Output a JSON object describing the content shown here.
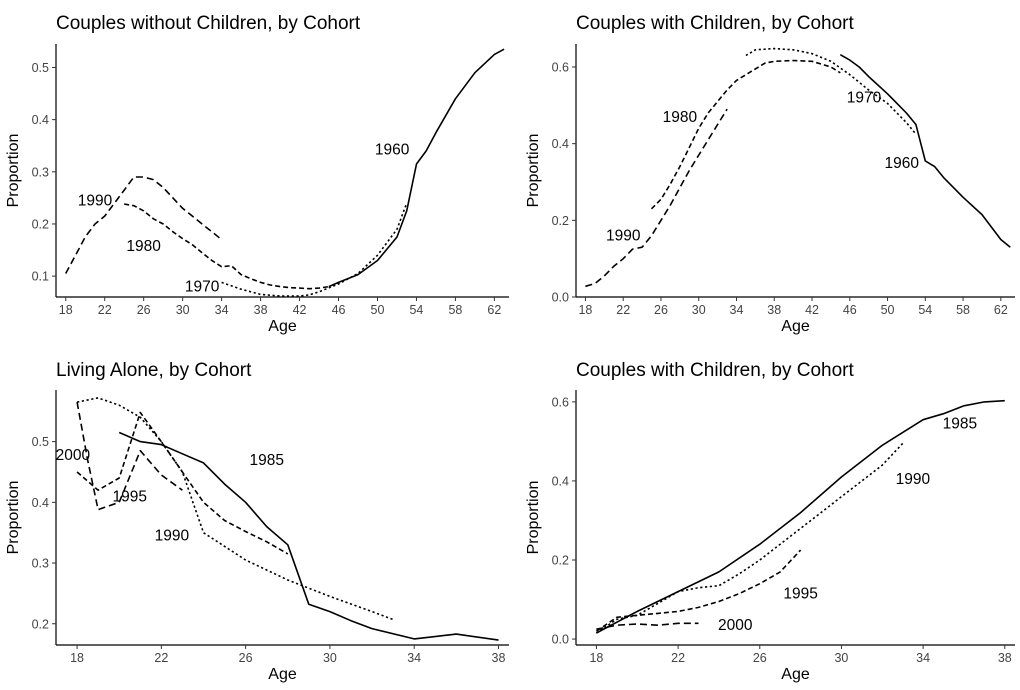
{
  "chart_data": [
    {
      "type": "line",
      "title": "Couples without Children, by Cohort",
      "xlabel": "Age",
      "ylabel": "Proportion",
      "xlim": [
        17,
        63.5
      ],
      "ylim": [
        0.06,
        0.545
      ],
      "xticks": [
        18,
        22,
        26,
        30,
        34,
        38,
        42,
        46,
        50,
        54,
        58,
        62
      ],
      "yticks": [
        0.1,
        0.2,
        0.3,
        0.4,
        0.5
      ],
      "series": [
        {
          "name": "1990",
          "style": "longdash",
          "label_at": [
            21,
            0.245
          ],
          "points": [
            [
              18,
              0.105
            ],
            [
              19,
              0.14
            ],
            [
              20,
              0.175
            ],
            [
              21,
              0.2
            ],
            [
              22,
              0.215
            ],
            [
              23,
              0.24
            ],
            [
              24,
              0.265
            ],
            [
              25,
              0.29
            ],
            [
              26,
              0.29
            ],
            [
              27,
              0.285
            ],
            [
              28,
              0.27
            ],
            [
              29,
              0.25
            ],
            [
              30,
              0.23
            ],
            [
              31,
              0.215
            ],
            [
              32,
              0.2
            ],
            [
              33,
              0.185
            ],
            [
              34,
              0.17
            ]
          ]
        },
        {
          "name": "1980",
          "style": "shortdash",
          "label_at": [
            26,
            0.158
          ],
          "points": [
            [
              24,
              0.238
            ],
            [
              25,
              0.235
            ],
            [
              26,
              0.225
            ],
            [
              27,
              0.21
            ],
            [
              28,
              0.2
            ],
            [
              29,
              0.185
            ],
            [
              30,
              0.172
            ],
            [
              31,
              0.16
            ],
            [
              32,
              0.145
            ],
            [
              33,
              0.13
            ],
            [
              34,
              0.118
            ],
            [
              35,
              0.12
            ],
            [
              36,
              0.103
            ],
            [
              37,
              0.095
            ],
            [
              38,
              0.088
            ],
            [
              39,
              0.083
            ],
            [
              40,
              0.08
            ],
            [
              41,
              0.078
            ],
            [
              42,
              0.077
            ],
            [
              43,
              0.076
            ],
            [
              44,
              0.077
            ],
            [
              45,
              0.08
            ]
          ]
        },
        {
          "name": "1970",
          "style": "dotted",
          "label_at": [
            32,
            0.08
          ],
          "points": [
            [
              34,
              0.088
            ],
            [
              36,
              0.075
            ],
            [
              38,
              0.065
            ],
            [
              40,
              0.062
            ],
            [
              42,
              0.062
            ],
            [
              43,
              0.064
            ],
            [
              44,
              0.07
            ],
            [
              46,
              0.085
            ],
            [
              48,
              0.105
            ],
            [
              50,
              0.14
            ],
            [
              52,
              0.19
            ],
            [
              53,
              0.24
            ]
          ]
        },
        {
          "name": "1960",
          "style": "solid",
          "label_at": [
            51.5,
            0.343
          ],
          "points": [
            [
              45,
              0.08
            ],
            [
              46,
              0.088
            ],
            [
              48,
              0.103
            ],
            [
              50,
              0.13
            ],
            [
              52,
              0.175
            ],
            [
              53,
              0.225
            ],
            [
              54,
              0.315
            ],
            [
              55,
              0.34
            ],
            [
              56,
              0.375
            ],
            [
              58,
              0.44
            ],
            [
              60,
              0.49
            ],
            [
              62,
              0.525
            ],
            [
              63,
              0.535
            ]
          ]
        }
      ]
    },
    {
      "type": "line",
      "title": "Couples with Children, by Cohort",
      "xlabel": "Age",
      "ylabel": "Proportion",
      "xlim": [
        17,
        63.5
      ],
      "ylim": [
        0,
        0.66
      ],
      "xticks": [
        18,
        22,
        26,
        30,
        34,
        38,
        42,
        46,
        50,
        54,
        58,
        62
      ],
      "yticks": [
        0.0,
        0.2,
        0.4,
        0.6
      ],
      "series": [
        {
          "name": "1990",
          "style": "longdash",
          "label_at": [
            22,
            0.16
          ],
          "points": [
            [
              18,
              0.028
            ],
            [
              19,
              0.035
            ],
            [
              20,
              0.055
            ],
            [
              21,
              0.08
            ],
            [
              22,
              0.1
            ],
            [
              23,
              0.125
            ],
            [
              24,
              0.13
            ],
            [
              25,
              0.16
            ],
            [
              26,
              0.2
            ],
            [
              27,
              0.24
            ],
            [
              28,
              0.285
            ],
            [
              29,
              0.33
            ],
            [
              30,
              0.37
            ],
            [
              31,
              0.41
            ],
            [
              32,
              0.45
            ],
            [
              33,
              0.49
            ]
          ]
        },
        {
          "name": "1980",
          "style": "shortdash",
          "label_at": [
            28,
            0.47
          ],
          "points": [
            [
              25,
              0.23
            ],
            [
              26,
              0.255
            ],
            [
              27,
              0.295
            ],
            [
              28,
              0.34
            ],
            [
              29,
              0.39
            ],
            [
              30,
              0.44
            ],
            [
              31,
              0.48
            ],
            [
              32,
              0.51
            ],
            [
              33,
              0.54
            ],
            [
              34,
              0.565
            ],
            [
              35,
              0.58
            ],
            [
              36,
              0.595
            ],
            [
              37,
              0.61
            ],
            [
              38,
              0.615
            ],
            [
              40,
              0.617
            ],
            [
              42,
              0.615
            ],
            [
              44,
              0.6
            ],
            [
              45,
              0.585
            ]
          ]
        },
        {
          "name": "1970",
          "style": "dotted",
          "label_at": [
            47.5,
            0.52
          ],
          "points": [
            [
              35,
              0.63
            ],
            [
              36,
              0.645
            ],
            [
              38,
              0.648
            ],
            [
              40,
              0.645
            ],
            [
              42,
              0.635
            ],
            [
              44,
              0.615
            ],
            [
              46,
              0.58
            ],
            [
              48,
              0.54
            ],
            [
              50,
              0.505
            ],
            [
              52,
              0.455
            ],
            [
              53,
              0.425
            ]
          ]
        },
        {
          "name": "1960",
          "style": "solid",
          "label_at": [
            51.5,
            0.35
          ],
          "points": [
            [
              45,
              0.632
            ],
            [
              46,
              0.618
            ],
            [
              47,
              0.6
            ],
            [
              48,
              0.575
            ],
            [
              50,
              0.53
            ],
            [
              52,
              0.48
            ],
            [
              53,
              0.45
            ],
            [
              54,
              0.355
            ],
            [
              55,
              0.34
            ],
            [
              56,
              0.31
            ],
            [
              58,
              0.26
            ],
            [
              60,
              0.215
            ],
            [
              62,
              0.15
            ],
            [
              63,
              0.13
            ]
          ]
        }
      ]
    },
    {
      "type": "line",
      "title": "Living Alone, by Cohort",
      "xlabel": "Age",
      "ylabel": "Proportion",
      "xlim": [
        17,
        38.5
      ],
      "ylim": [
        0.165,
        0.585
      ],
      "xticks": [
        18,
        22,
        26,
        30,
        34,
        38
      ],
      "yticks": [
        0.2,
        0.3,
        0.4,
        0.5
      ],
      "series": [
        {
          "name": "2000",
          "style": "longdash",
          "label_at": [
            17.8,
            0.478
          ],
          "points": [
            [
              18,
              0.565
            ],
            [
              18.5,
              0.47
            ],
            [
              19,
              0.388
            ],
            [
              20,
              0.4
            ],
            [
              21,
              0.485
            ],
            [
              22,
              0.445
            ],
            [
              23,
              0.42
            ]
          ]
        },
        {
          "name": "1995",
          "style": "shortdash",
          "label_at": [
            20.5,
            0.41
          ],
          "points": [
            [
              18,
              0.45
            ],
            [
              19,
              0.42
            ],
            [
              20,
              0.44
            ],
            [
              21,
              0.548
            ],
            [
              22,
              0.5
            ],
            [
              23,
              0.45
            ],
            [
              24,
              0.4
            ],
            [
              25,
              0.37
            ],
            [
              26,
              0.352
            ],
            [
              27,
              0.335
            ],
            [
              28,
              0.315
            ]
          ]
        },
        {
          "name": "1990",
          "style": "dotted",
          "label_at": [
            22.5,
            0.345
          ],
          "points": [
            [
              18,
              0.565
            ],
            [
              19,
              0.572
            ],
            [
              20,
              0.56
            ],
            [
              21,
              0.54
            ],
            [
              22,
              0.5
            ],
            [
              23,
              0.45
            ],
            [
              24,
              0.35
            ],
            [
              26,
              0.305
            ],
            [
              28,
              0.272
            ],
            [
              30,
              0.245
            ],
            [
              32,
              0.22
            ],
            [
              33,
              0.207
            ]
          ]
        },
        {
          "name": "1985",
          "style": "solid",
          "label_at": [
            27,
            0.47
          ],
          "points": [
            [
              20,
              0.515
            ],
            [
              21,
              0.5
            ],
            [
              22,
              0.495
            ],
            [
              23,
              0.48
            ],
            [
              24,
              0.465
            ],
            [
              25,
              0.43
            ],
            [
              26,
              0.4
            ],
            [
              27,
              0.36
            ],
            [
              28,
              0.33
            ],
            [
              29,
              0.232
            ],
            [
              30,
              0.22
            ],
            [
              31,
              0.205
            ],
            [
              32,
              0.192
            ],
            [
              34,
              0.175
            ],
            [
              36,
              0.183
            ],
            [
              38,
              0.173
            ]
          ]
        }
      ]
    },
    {
      "type": "line",
      "title": "Couples with Children, by Cohort",
      "xlabel": "Age",
      "ylabel": "Proportion",
      "xlim": [
        17,
        38.5
      ],
      "ylim": [
        -0.015,
        0.63
      ],
      "xticks": [
        18,
        22,
        26,
        30,
        34,
        38
      ],
      "yticks": [
        0.0,
        0.2,
        0.4,
        0.6
      ],
      "series": [
        {
          "name": "2000",
          "style": "longdash",
          "label_at": [
            24.8,
            0.035
          ],
          "points": [
            [
              18,
              0.025
            ],
            [
              19,
              0.035
            ],
            [
              20,
              0.038
            ],
            [
              21,
              0.035
            ],
            [
              22,
              0.04
            ],
            [
              23,
              0.04
            ]
          ]
        },
        {
          "name": "1995",
          "style": "shortdash",
          "label_at": [
            28,
            0.115
          ],
          "points": [
            [
              18,
              0.02
            ],
            [
              19,
              0.055
            ],
            [
              20,
              0.06
            ],
            [
              21,
              0.065
            ],
            [
              22,
              0.07
            ],
            [
              23,
              0.08
            ],
            [
              24,
              0.095
            ],
            [
              25,
              0.115
            ],
            [
              26,
              0.14
            ],
            [
              27,
              0.17
            ],
            [
              28,
              0.225
            ]
          ]
        },
        {
          "name": "1990",
          "style": "dotted",
          "label_at": [
            33.5,
            0.405
          ],
          "points": [
            [
              18,
              0.015
            ],
            [
              19,
              0.05
            ],
            [
              20,
              0.06
            ],
            [
              21,
              0.09
            ],
            [
              22,
              0.12
            ],
            [
              23,
              0.13
            ],
            [
              24,
              0.135
            ],
            [
              25,
              0.165
            ],
            [
              26,
              0.2
            ],
            [
              27,
              0.24
            ],
            [
              28,
              0.28
            ],
            [
              29,
              0.32
            ],
            [
              30,
              0.36
            ],
            [
              31,
              0.4
            ],
            [
              32,
              0.44
            ],
            [
              33,
              0.495
            ]
          ]
        },
        {
          "name": "1985",
          "style": "solid",
          "label_at": [
            35.8,
            0.545
          ],
          "points": [
            [
              18,
              0.015
            ],
            [
              20,
              0.07
            ],
            [
              22,
              0.12
            ],
            [
              24,
              0.17
            ],
            [
              26,
              0.24
            ],
            [
              28,
              0.32
            ],
            [
              30,
              0.41
            ],
            [
              32,
              0.49
            ],
            [
              34,
              0.555
            ],
            [
              35,
              0.57
            ],
            [
              36,
              0.59
            ],
            [
              37,
              0.6
            ],
            [
              38,
              0.603
            ]
          ]
        }
      ]
    }
  ]
}
